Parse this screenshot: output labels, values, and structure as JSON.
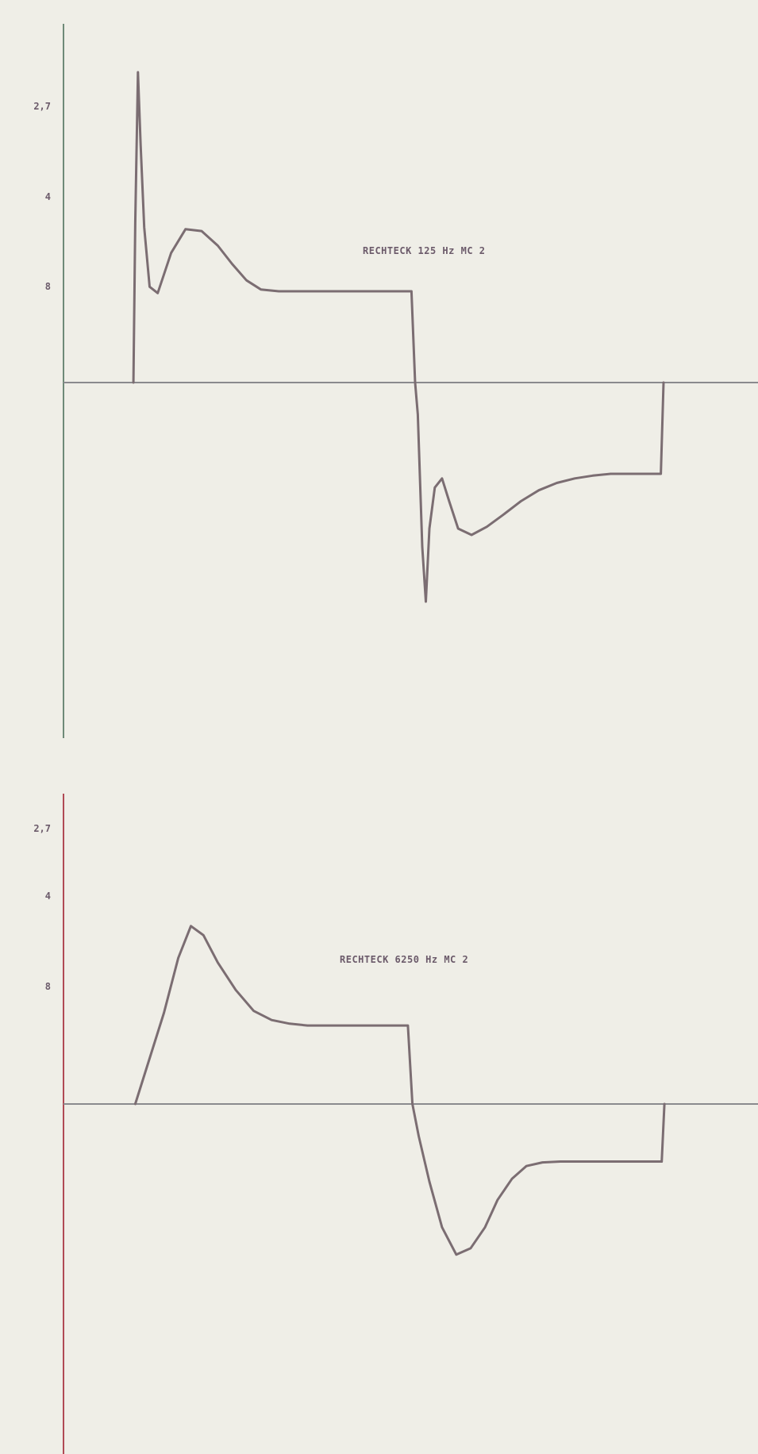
{
  "chart_data": [
    {
      "type": "line",
      "title": "",
      "annotation": "RECHTECK 125 Hz    MC 2",
      "y_tick_labels": [
        "2,7",
        "4",
        "8"
      ],
      "colors": {
        "axis": "#6f8a78",
        "baseline": "#8a8a8e",
        "trace": "#7b6d72"
      },
      "series": [
        {
          "x": [
            0.78,
            0.8,
            0.83,
            0.86,
            0.9,
            0.96,
            1.05,
            1.2,
            1.36,
            1.54,
            1.72,
            1.88,
            2.04,
            2.2,
            2.4,
            2.6,
            2.8,
            3.0,
            3.2,
            3.4,
            3.6,
            3.8,
            3.88,
            3.92,
            3.95,
            4.0,
            4.04,
            4.08,
            4.14,
            4.22,
            4.3,
            4.4,
            4.55,
            4.72,
            4.9,
            5.1,
            5.3,
            5.5,
            5.7,
            5.9,
            6.1,
            6.3,
            6.5,
            6.66,
            6.69
          ],
          "y": [
            0,
            1.75,
            3.4,
            2.6,
            1.7,
            1.05,
            0.98,
            1.42,
            1.68,
            1.66,
            1.5,
            1.3,
            1.12,
            1.02,
            1.0,
            1.0,
            1.0,
            1.0,
            1.0,
            1.0,
            1.0,
            1.0,
            1.0,
            0.0,
            -0.35,
            -1.8,
            -2.4,
            -1.6,
            -1.15,
            -1.05,
            -1.3,
            -1.6,
            -1.67,
            -1.58,
            -1.45,
            -1.3,
            -1.18,
            -1.1,
            -1.05,
            -1.02,
            -1.0,
            -1.0,
            -1.0,
            -1.0,
            0
          ]
        }
      ]
    },
    {
      "type": "line",
      "title": "",
      "annotation": "RECHTECK 6250 Hz    MC 2",
      "y_tick_labels": [
        "2,7",
        "4",
        "8"
      ],
      "colors": {
        "axis": "#b04a55",
        "baseline": "#8a8a8e",
        "trace": "#7b6d72"
      },
      "series": [
        {
          "x": [
            0.8,
            0.96,
            1.12,
            1.28,
            1.42,
            1.56,
            1.72,
            1.92,
            2.12,
            2.32,
            2.52,
            2.72,
            2.92,
            3.12,
            3.32,
            3.52,
            3.72,
            3.84,
            3.89,
            3.96,
            4.08,
            4.22,
            4.38,
            4.54,
            4.7,
            4.84,
            5.0,
            5.16,
            5.34,
            5.54,
            5.74,
            5.94,
            6.14,
            6.34,
            6.54,
            6.67,
            6.7
          ],
          "y": [
            0,
            0.5,
            1.0,
            1.6,
            1.95,
            1.85,
            1.55,
            1.25,
            1.02,
            0.92,
            0.88,
            0.86,
            0.86,
            0.86,
            0.86,
            0.86,
            0.86,
            0.86,
            0.0,
            -0.35,
            -0.85,
            -1.35,
            -1.65,
            -1.58,
            -1.35,
            -1.05,
            -0.82,
            -0.68,
            -0.64,
            -0.63,
            -0.63,
            -0.63,
            -0.63,
            -0.63,
            -0.63,
            -0.63,
            0
          ]
        }
      ]
    }
  ]
}
